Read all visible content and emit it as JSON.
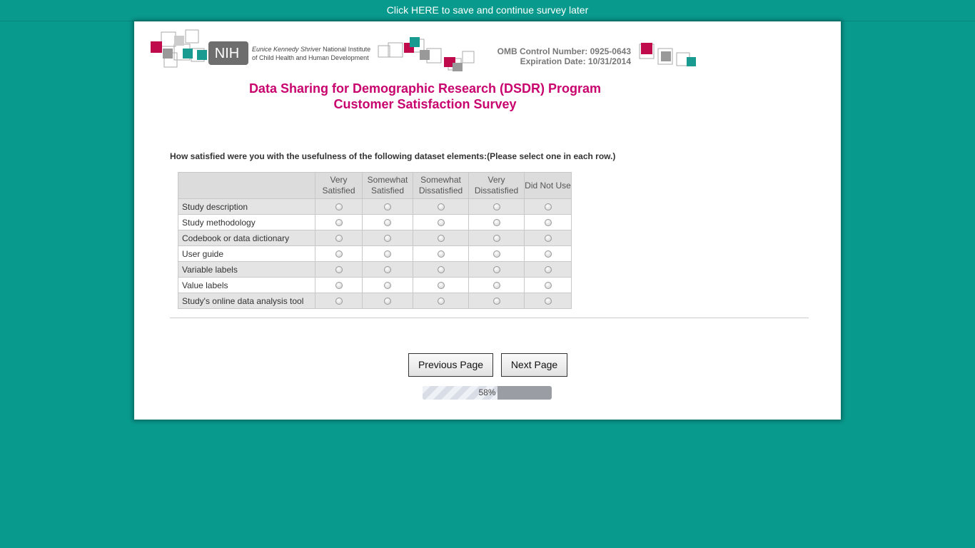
{
  "top_bar": {
    "save_link": "Click HERE to save and continue survey later"
  },
  "header": {
    "logo_text": "NIH",
    "institute_italic": "Eunice Kennedy Shriver",
    "institute_line1": "National Institute",
    "institute_line2": "of Child Health and Human Development",
    "omb": "OMB Control Number: 0925-0643",
    "expiration": "Expiration Date: 10/31/2014",
    "title": "Data Sharing for Demographic Research (DSDR) Program",
    "subtitle": "Customer Satisfaction Survey"
  },
  "question": "How satisfied were you with the usefulness of the following dataset elements:(Please select one in each row.)",
  "table": {
    "columns": [
      "Very Satisfied",
      "Somewhat Satisfied",
      "Somewhat Dissatisfied",
      "Very Dissatisfied",
      "Did Not Use"
    ],
    "rows": [
      "Study description",
      "Study methodology",
      "Codebook or data dictionary",
      "User guide",
      "Variable labels",
      "Value labels",
      "Study's online data analysis tool"
    ]
  },
  "buttons": {
    "previous": "Previous Page",
    "next": "Next Page"
  },
  "progress": {
    "value": 58,
    "label": "58%"
  }
}
